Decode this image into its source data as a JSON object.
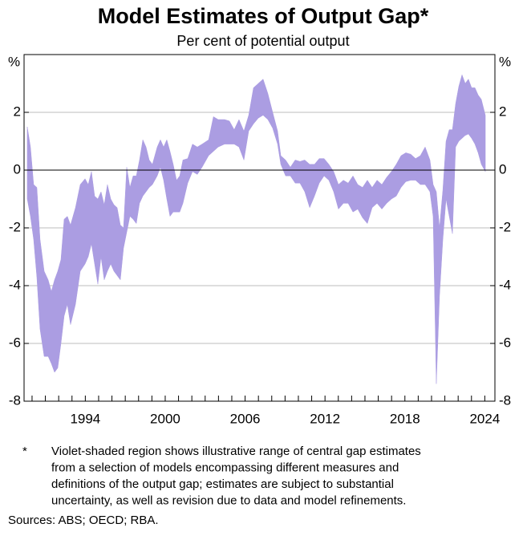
{
  "chart_data": {
    "type": "range_area",
    "title": "Model Estimates of Output Gap*",
    "subtitle": "Per cent of potential output",
    "y_unit": "%",
    "color": "#ab9de2",
    "xlim": [
      1989.4,
      2024.76
    ],
    "ylim": [
      -8,
      4
    ],
    "yticks": [
      -8,
      -6,
      -4,
      -2,
      0,
      2
    ],
    "xticks": [
      1994,
      2000,
      2006,
      2012,
      2018,
      2024
    ],
    "xticks_minor": [
      1990,
      1991,
      1992,
      1993,
      1994,
      1995,
      1996,
      1997,
      1998,
      1999,
      2000,
      2001,
      2002,
      2003,
      2004,
      2005,
      2006,
      2007,
      2008,
      2009,
      2010,
      2011,
      2012,
      2013,
      2014,
      2015,
      2016,
      2017,
      2018,
      2019,
      2020,
      2021,
      2022,
      2023,
      2024
    ],
    "grid": true,
    "x": [
      1989.64,
      1989.88,
      1990.12,
      1990.36,
      1990.6,
      1990.91,
      1991.21,
      1991.45,
      1991.69,
      1991.93,
      1992.17,
      1992.41,
      1992.65,
      1992.89,
      1993.26,
      1993.62,
      1993.98,
      1994.22,
      1994.46,
      1994.7,
      1994.94,
      1995.18,
      1995.42,
      1995.66,
      1995.91,
      1996.15,
      1996.39,
      1996.63,
      1996.87,
      1997.11,
      1997.35,
      1997.59,
      1997.83,
      1998.07,
      1998.32,
      1998.56,
      1998.8,
      1999.04,
      1999.4,
      1999.64,
      1999.88,
      2000.12,
      2000.36,
      2000.6,
      2000.85,
      2001.09,
      2001.33,
      2001.69,
      2002.05,
      2002.41,
      2002.77,
      2003.26,
      2003.62,
      2003.98,
      2004.46,
      2004.82,
      2005.18,
      2005.54,
      2005.91,
      2006.27,
      2006.63,
      2006.99,
      2007.35,
      2007.71,
      2008.07,
      2008.44,
      2008.68,
      2009.04,
      2009.4,
      2009.76,
      2010.12,
      2010.48,
      2010.85,
      2011.21,
      2011.57,
      2011.93,
      2012.29,
      2012.65,
      2013.01,
      2013.38,
      2013.74,
      2014.1,
      2014.46,
      2014.82,
      2015.18,
      2015.54,
      2015.91,
      2016.27,
      2016.63,
      2016.99,
      2017.35,
      2017.71,
      2018.07,
      2018.44,
      2018.8,
      2019.16,
      2019.52,
      2019.88,
      2020.12,
      2020.36,
      2020.6,
      2020.85,
      2021.09,
      2021.33,
      2021.57,
      2021.81,
      2022.05,
      2022.29,
      2022.53,
      2022.77,
      2023.01,
      2023.26,
      2023.5,
      2023.74,
      2024.04
    ],
    "upper": [
      1.5,
      0.8,
      -0.5,
      -0.6,
      -2.4,
      -3.5,
      -3.8,
      -4.2,
      -3.8,
      -3.5,
      -3.1,
      -1.7,
      -1.6,
      -1.9,
      -1.3,
      -0.5,
      -0.3,
      -0.5,
      -0.05,
      -0.9,
      -1.0,
      -0.75,
      -1.2,
      -0.5,
      -1.0,
      -1.2,
      -1.3,
      -1.9,
      -2.0,
      0.1,
      -0.6,
      -0.2,
      -0.2,
      0.35,
      1.05,
      0.8,
      0.35,
      0.2,
      0.8,
      1.05,
      0.8,
      1.05,
      0.65,
      0.2,
      -0.35,
      -0.2,
      0.35,
      0.4,
      0.9,
      0.8,
      0.9,
      1.05,
      1.85,
      1.75,
      1.75,
      1.7,
      1.4,
      1.75,
      1.35,
      1.9,
      2.85,
      3.0,
      3.15,
      2.65,
      2.0,
      1.35,
      0.5,
      0.35,
      0.1,
      0.35,
      0.3,
      0.35,
      0.2,
      0.2,
      0.4,
      0.4,
      0.2,
      -0.05,
      -0.5,
      -0.35,
      -0.45,
      -0.2,
      -0.5,
      -0.6,
      -0.35,
      -0.6,
      -0.35,
      -0.5,
      -0.25,
      -0.05,
      0.2,
      0.5,
      0.6,
      0.55,
      0.4,
      0.5,
      0.8,
      0.35,
      -0.5,
      -0.75,
      -2.0,
      -0.7,
      1.0,
      1.4,
      1.4,
      2.3,
      2.9,
      3.3,
      3.0,
      3.15,
      2.85,
      2.85,
      2.6,
      2.45,
      1.9
    ],
    "lower": [
      -1.0,
      -1.6,
      -2.4,
      -3.7,
      -5.5,
      -6.45,
      -6.45,
      -6.7,
      -7.0,
      -6.85,
      -6.0,
      -5.05,
      -4.65,
      -5.35,
      -4.65,
      -3.5,
      -3.25,
      -3.0,
      -2.55,
      -3.25,
      -3.95,
      -3.0,
      -3.8,
      -3.5,
      -3.25,
      -3.5,
      -3.65,
      -3.8,
      -2.7,
      -2.15,
      -1.6,
      -1.7,
      -1.85,
      -1.15,
      -0.9,
      -0.75,
      -0.6,
      -0.5,
      -0.2,
      0.1,
      -0.35,
      -1.0,
      -1.6,
      -1.45,
      -1.45,
      -1.45,
      -1.15,
      -0.45,
      -0.05,
      -0.15,
      0.1,
      0.5,
      0.65,
      0.8,
      0.9,
      0.9,
      0.9,
      0.8,
      0.35,
      1.35,
      1.6,
      1.8,
      1.9,
      1.75,
      1.45,
      0.9,
      0.2,
      -0.2,
      -0.2,
      -0.45,
      -0.45,
      -0.75,
      -1.3,
      -0.9,
      -0.45,
      -0.2,
      -0.35,
      -0.75,
      -1.35,
      -1.15,
      -1.15,
      -1.45,
      -1.35,
      -1.65,
      -1.85,
      -1.3,
      -1.15,
      -1.35,
      -1.15,
      -1.0,
      -0.9,
      -0.6,
      -0.4,
      -0.35,
      -0.35,
      -0.5,
      -0.5,
      -0.75,
      -1.6,
      -7.4,
      -4.35,
      -2.4,
      -1.0,
      -1.6,
      -2.2,
      0.8,
      1.0,
      1.1,
      1.2,
      1.25,
      1.1,
      0.9,
      0.6,
      0.2,
      -0.05
    ],
    "footnote_marker": "*",
    "footnote": [
      "Violet-shaded region shows illustrative range of central gap estimates",
      "from a selection of models encompassing different measures and",
      "definitions of the output gap; estimates are subject to substantial",
      "uncertainty, as well as revision due to data and model refinements."
    ],
    "sources": "Sources: ABS; OECD; RBA."
  }
}
